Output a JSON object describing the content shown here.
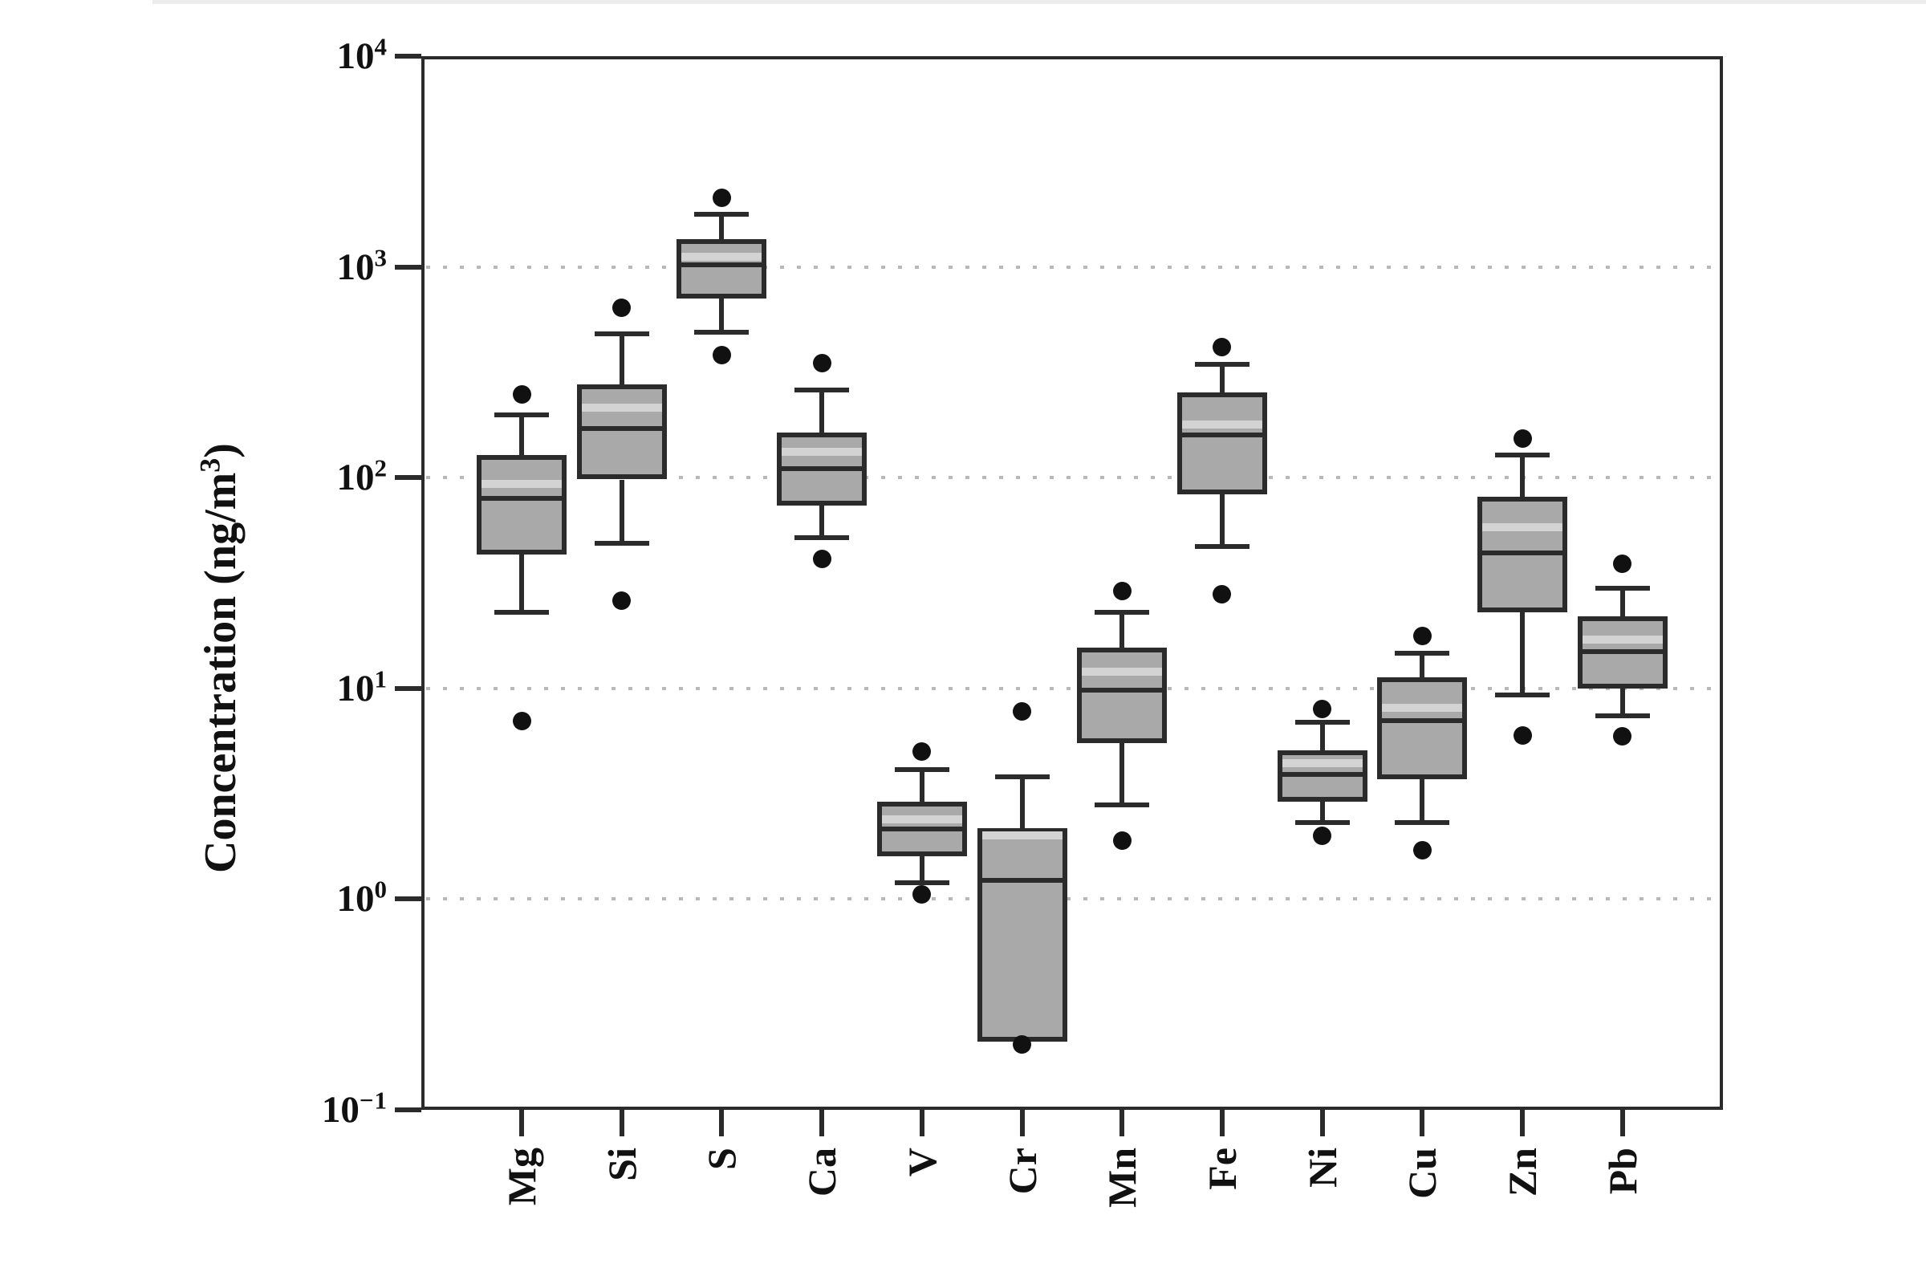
{
  "figure": {
    "background": "#ffffff",
    "top_edge_color": "#ececec"
  },
  "chart_data": {
    "type": "box",
    "title": "",
    "ylabel": {
      "prefix": "Concentration (ng/m",
      "sup": "3",
      "suffix": ")"
    },
    "y_axis": {
      "scale": "log",
      "ylim": [
        0.1,
        10000
      ],
      "tick_base": "10",
      "tick_exponents": [
        "4",
        "3",
        "2",
        "1",
        "0",
        "−1"
      ],
      "gridline_exponents": [
        3,
        2,
        1,
        0
      ],
      "grid_style": "dotted"
    },
    "categories": [
      "Mg",
      "Si",
      "S",
      "Ca",
      "V",
      "Cr",
      "Mn",
      "Fe",
      "Ni",
      "Cu",
      "Zn",
      "Pb"
    ],
    "series": [
      {
        "element": "Mg",
        "whisker_low": 23,
        "q1": 43,
        "median": 80,
        "mean": 93,
        "q3": 128,
        "whisker_high": 198,
        "outliers": [
          248,
          7.0
        ]
      },
      {
        "element": "Si",
        "whisker_low": 49,
        "q1": 98,
        "median": 171,
        "mean": 215,
        "q3": 276,
        "whisker_high": 480,
        "outliers": [
          640,
          26
        ]
      },
      {
        "element": "S",
        "whisker_low": 490,
        "q1": 705,
        "median": 1025,
        "mean": 1120,
        "q3": 1360,
        "whisker_high": 1780,
        "outliers": [
          2120,
          380
        ]
      },
      {
        "element": "Ca",
        "whisker_low": 52,
        "q1": 74,
        "median": 110,
        "mean": 133,
        "q3": 163,
        "whisker_high": 260,
        "outliers": [
          350,
          41
        ]
      },
      {
        "element": "V",
        "whisker_low": 1.2,
        "q1": 1.6,
        "median": 2.15,
        "mean": 2.4,
        "q3": 2.9,
        "whisker_high": 4.1,
        "outliers": [
          5.0,
          1.05
        ]
      },
      {
        "element": "Cr",
        "whisker_low": null,
        "q1": 0.21,
        "median": 1.23,
        "mean": 2.0,
        "q3": 2.18,
        "whisker_high": 3.8,
        "outliers": [
          7.8,
          0.205
        ]
      },
      {
        "element": "Mn",
        "whisker_low": 2.8,
        "q1": 5.5,
        "median": 9.8,
        "mean": 12,
        "q3": 15.6,
        "whisker_high": 23,
        "outliers": [
          29,
          1.9
        ]
      },
      {
        "element": "Fe",
        "whisker_low": 47,
        "q1": 83,
        "median": 159,
        "mean": 178,
        "q3": 253,
        "whisker_high": 344,
        "outliers": [
          417,
          28
        ]
      },
      {
        "element": "Ni",
        "whisker_low": 2.3,
        "q1": 2.9,
        "median": 3.9,
        "mean": 4.4,
        "q3": 5.1,
        "whisker_high": 6.9,
        "outliers": [
          8.0,
          2.0
        ]
      },
      {
        "element": "Cu",
        "whisker_low": 2.3,
        "q1": 3.7,
        "median": 7.0,
        "mean": 8.1,
        "q3": 11.3,
        "whisker_high": 14.7,
        "outliers": [
          17.8,
          1.7
        ]
      },
      {
        "element": "Zn",
        "whisker_low": 9.3,
        "q1": 23,
        "median": 44,
        "mean": 58,
        "q3": 81,
        "whisker_high": 128,
        "outliers": [
          153,
          6.0
        ]
      },
      {
        "element": "Pb",
        "whisker_low": 7.4,
        "q1": 10,
        "median": 15,
        "mean": 17,
        "q3": 22,
        "whisker_high": 30,
        "outliers": [
          39,
          5.9
        ]
      }
    ],
    "legend": "none",
    "units": "ng/m3"
  },
  "style_colors": {
    "box_fill": "#a9a9a9",
    "box_border": "#2b2b2b",
    "median": "#2b2b2b",
    "mean_stripe": "#d3d3d3",
    "outlier": "#111111",
    "grid": "#b8b8b8",
    "axis": "#2b2b2b",
    "text": "#111111"
  }
}
